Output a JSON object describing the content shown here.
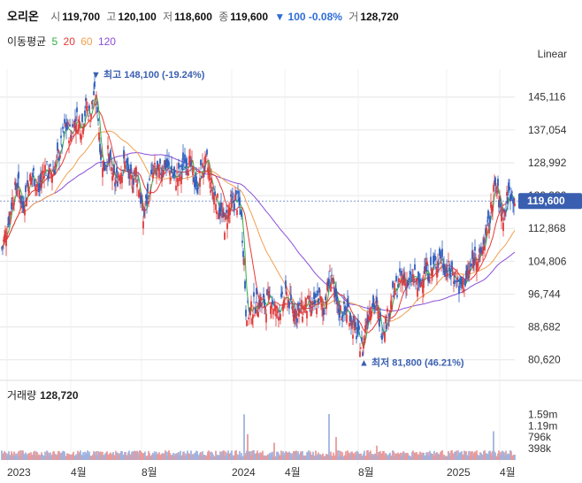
{
  "header": {
    "name": "오리온",
    "open_label": "시",
    "open": "119,700",
    "high_label": "고",
    "high": "120,100",
    "low_label": "저",
    "low": "118,600",
    "close_label": "종",
    "close": "119,600",
    "change": "▼ 100 -0.08%",
    "volume_label": "거",
    "volume": "128,720"
  },
  "ma_legend": {
    "label": "이동평균",
    "items": [
      {
        "text": "5",
        "color": "#2fae45"
      },
      {
        "text": "20",
        "color": "#e53935"
      },
      {
        "text": "60",
        "color": "#f0a050"
      },
      {
        "text": "120",
        "color": "#8a4fd8"
      }
    ]
  },
  "scale_mode": "Linear",
  "colors": {
    "up": "#e03a3a",
    "down": "#2f5fbf",
    "price_tag": "#3a5fb0",
    "grid": "#e6e6e6"
  },
  "chart_data": {
    "type": "candlestick",
    "price_axis": {
      "min": 76000,
      "max": 152000,
      "ticks": [
        80620,
        88682,
        96744,
        104806,
        112868,
        120930,
        128992,
        137054,
        145116
      ],
      "tick_labels": [
        "80,620",
        "88,682",
        "96,744",
        "104,806",
        "112,868",
        "120,930",
        "128,992",
        "137,054",
        "145,116"
      ]
    },
    "time_axis": {
      "labels": [
        "2023",
        "4월",
        "8월",
        "2024",
        "4월",
        "8월",
        "2025",
        "4월"
      ]
    },
    "last_price": 119600,
    "last_price_label": "119,600",
    "annotations": [
      {
        "text": "▼ 최고 148,100 (-19.24%)",
        "value": 148100,
        "kind": "high"
      },
      {
        "text": "▲ 최저 81,800 (46.21%)",
        "value": 81800,
        "kind": "low"
      }
    ],
    "price_series": [
      [
        0,
        108000
      ],
      [
        6,
        113000
      ],
      [
        12,
        120000
      ],
      [
        18,
        124000
      ],
      [
        24,
        118000
      ],
      [
        30,
        124000
      ],
      [
        36,
        126000
      ],
      [
        42,
        122000
      ],
      [
        48,
        128000
      ],
      [
        54,
        126000
      ],
      [
        60,
        128000
      ],
      [
        66,
        132000
      ],
      [
        72,
        138000
      ],
      [
        78,
        136000
      ],
      [
        84,
        140000
      ],
      [
        90,
        138000
      ],
      [
        96,
        143000
      ],
      [
        100,
        140000
      ],
      [
        104,
        146000
      ],
      [
        108,
        143000
      ],
      [
        112,
        131000
      ],
      [
        116,
        128000
      ],
      [
        120,
        131000
      ],
      [
        124,
        127000
      ],
      [
        128,
        124000
      ],
      [
        134,
        127000
      ],
      [
        140,
        129000
      ],
      [
        146,
        124000
      ],
      [
        152,
        127000
      ],
      [
        156,
        122000
      ],
      [
        160,
        115000
      ],
      [
        164,
        120000
      ],
      [
        168,
        124000
      ],
      [
        172,
        127000
      ],
      [
        178,
        126000
      ],
      [
        184,
        129000
      ],
      [
        190,
        127000
      ],
      [
        196,
        125000
      ],
      [
        202,
        126000
      ],
      [
        208,
        130000
      ],
      [
        214,
        128000
      ],
      [
        220,
        123000
      ],
      [
        226,
        127000
      ],
      [
        232,
        129000
      ],
      [
        236,
        124000
      ],
      [
        240,
        121000
      ],
      [
        246,
        118000
      ],
      [
        252,
        114000
      ],
      [
        258,
        118000
      ],
      [
        264,
        120000
      ],
      [
        270,
        118000
      ],
      [
        274,
        105000
      ],
      [
        276,
        93000
      ],
      [
        280,
        92000
      ],
      [
        286,
        94000
      ],
      [
        292,
        95000
      ],
      [
        298,
        94000
      ],
      [
        304,
        96000
      ],
      [
        310,
        92000
      ],
      [
        316,
        94000
      ],
      [
        322,
        96000
      ],
      [
        328,
        94000
      ],
      [
        334,
        92000
      ],
      [
        340,
        93000
      ],
      [
        346,
        94000
      ],
      [
        352,
        93000
      ],
      [
        358,
        96000
      ],
      [
        364,
        93000
      ],
      [
        370,
        100000
      ],
      [
        373,
        102000
      ],
      [
        376,
        96000
      ],
      [
        380,
        93000
      ],
      [
        386,
        92000
      ],
      [
        392,
        93000
      ],
      [
        398,
        88000
      ],
      [
        402,
        87000
      ],
      [
        408,
        83000
      ],
      [
        412,
        90000
      ],
      [
        418,
        95000
      ],
      [
        424,
        93000
      ],
      [
        430,
        88000
      ],
      [
        436,
        91000
      ],
      [
        442,
        96000
      ],
      [
        448,
        99000
      ],
      [
        454,
        101000
      ],
      [
        460,
        99000
      ],
      [
        466,
        101000
      ],
      [
        472,
        98000
      ],
      [
        478,
        103000
      ],
      [
        484,
        102000
      ],
      [
        490,
        104000
      ],
      [
        496,
        106000
      ],
      [
        502,
        103000
      ],
      [
        508,
        102000
      ],
      [
        514,
        101000
      ],
      [
        518,
        98000
      ],
      [
        524,
        100000
      ],
      [
        530,
        103000
      ],
      [
        536,
        107000
      ],
      [
        540,
        105000
      ],
      [
        546,
        110000
      ],
      [
        552,
        115000
      ],
      [
        556,
        123000
      ],
      [
        560,
        122000
      ],
      [
        564,
        118000
      ],
      [
        568,
        116000
      ],
      [
        572,
        121000
      ],
      [
        576,
        122000
      ],
      [
        580,
        119600
      ]
    ],
    "volume_axis": {
      "max": 2000000,
      "ticks": [
        398000,
        796000,
        1190000,
        1590000
      ],
      "tick_labels": [
        "398k",
        "796k",
        "1.19m",
        "1.59m"
      ]
    },
    "volume_label": "거래량",
    "volume_value": "128,720",
    "volume_spikes": [
      [
        274,
        1590000
      ],
      [
        278,
        900000
      ],
      [
        370,
        1600000
      ],
      [
        378,
        800000
      ],
      [
        556,
        1000000
      ],
      [
        308,
        600000
      ],
      [
        424,
        500000
      ]
    ]
  }
}
